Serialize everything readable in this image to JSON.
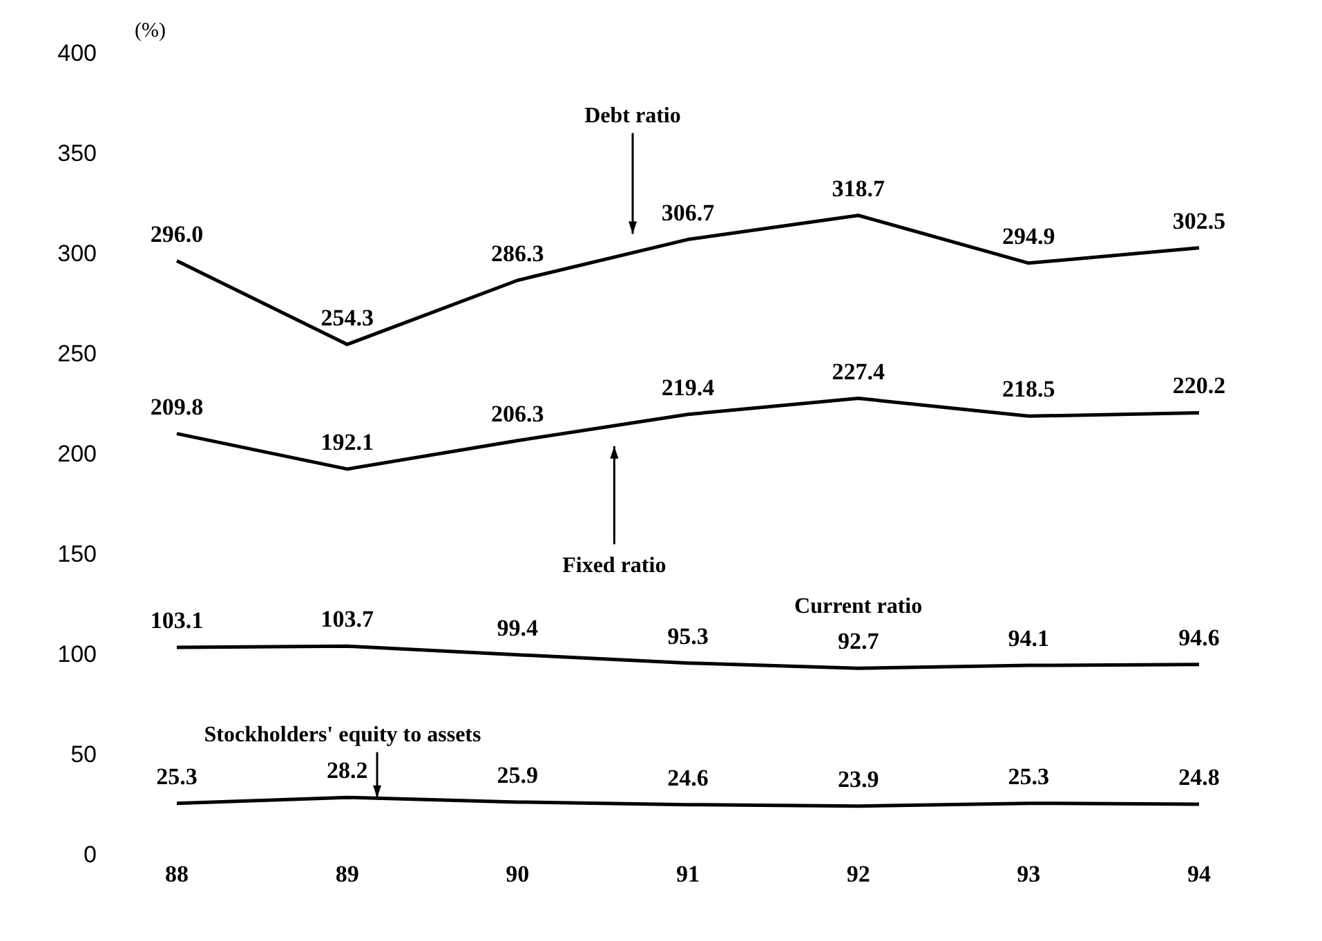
{
  "chart_data": {
    "type": "line",
    "ylabel": "(%)",
    "categories": [
      "88",
      "89",
      "90",
      "91",
      "92",
      "93",
      "94"
    ],
    "ylim": [
      0,
      400
    ],
    "yticks": [
      0,
      50,
      100,
      150,
      200,
      250,
      300,
      350,
      400
    ],
    "grid": false,
    "legend": false,
    "marker": "none",
    "line_style": "solid",
    "series": [
      {
        "name": "Debt ratio",
        "color": "#000000",
        "values": [
          296.0,
          254.3,
          286.3,
          306.7,
          318.7,
          294.9,
          302.5
        ],
        "value_labels": [
          "296.0",
          "254.3",
          "286.3",
          "306.7",
          "318.7",
          "294.9",
          "302.5"
        ]
      },
      {
        "name": "Fixed ratio",
        "color": "#000000",
        "values": [
          209.8,
          192.1,
          206.3,
          219.4,
          227.4,
          218.5,
          220.2
        ],
        "value_labels": [
          "209.8",
          "192.1",
          "206.3",
          "219.4",
          "227.4",
          "218.5",
          "220.2"
        ]
      },
      {
        "name": "Current ratio",
        "color": "#000000",
        "values": [
          103.1,
          103.7,
          99.4,
          95.3,
          92.7,
          94.1,
          94.6
        ],
        "value_labels": [
          "103.1",
          "103.7",
          "99.4",
          "95.3",
          "92.7",
          "94.1",
          "94.6"
        ]
      },
      {
        "name": "Stockholders' equity to assets",
        "color": "#000000",
        "values": [
          25.3,
          28.2,
          25.9,
          24.6,
          23.9,
          25.3,
          24.8
        ],
        "value_labels": [
          "25.3",
          "28.2",
          "25.9",
          "24.6",
          "23.9",
          "25.3",
          "24.8"
        ]
      }
    ]
  }
}
